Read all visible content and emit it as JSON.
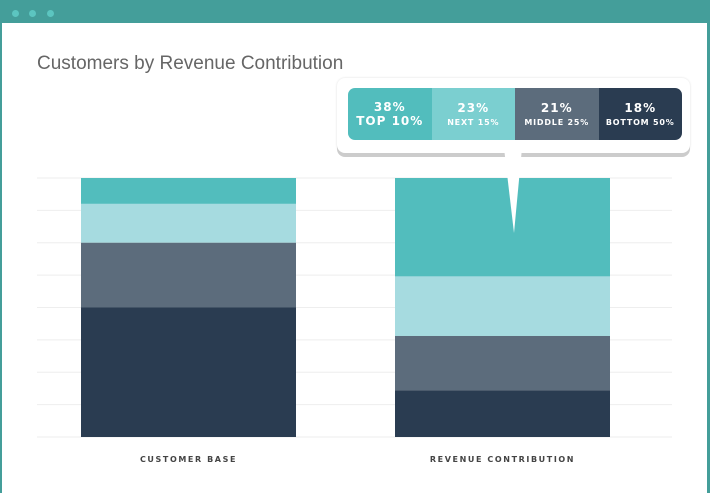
{
  "window": {
    "controls": [
      "close",
      "minimize",
      "maximize"
    ]
  },
  "chart_data": {
    "type": "bar",
    "stacked": true,
    "title": "Customers by Revenue Contribution",
    "categories": [
      "CUSTOMER BASE",
      "REVENUE CONTRIBUTION"
    ],
    "series": [
      {
        "name": "TOP 10%",
        "values": [
          10,
          38
        ],
        "color": "#52bdbd"
      },
      {
        "name": "NEXT 15%",
        "values": [
          15,
          23
        ],
        "color": "#a6dbe0"
      },
      {
        "name": "MIDDLE 25%",
        "values": [
          25,
          21
        ],
        "color": "#5c6c7c"
      },
      {
        "name": "BOTTOM 50%",
        "values": [
          50,
          18
        ],
        "color": "#2a3c51"
      }
    ],
    "ylim": [
      0,
      100
    ],
    "grid": true,
    "legend": "top-right callout"
  },
  "callout": [
    {
      "pct": "38%",
      "label": "TOP 10%",
      "color": "#52bdbd"
    },
    {
      "pct": "23%",
      "label": "NEXT 15%",
      "color": "#7bcfd0"
    },
    {
      "pct": "21%",
      "label": "MIDDLE 25%",
      "color": "#5c6c7c"
    },
    {
      "pct": "18%",
      "label": "BOTTOM 50%",
      "color": "#2a3c51"
    }
  ]
}
